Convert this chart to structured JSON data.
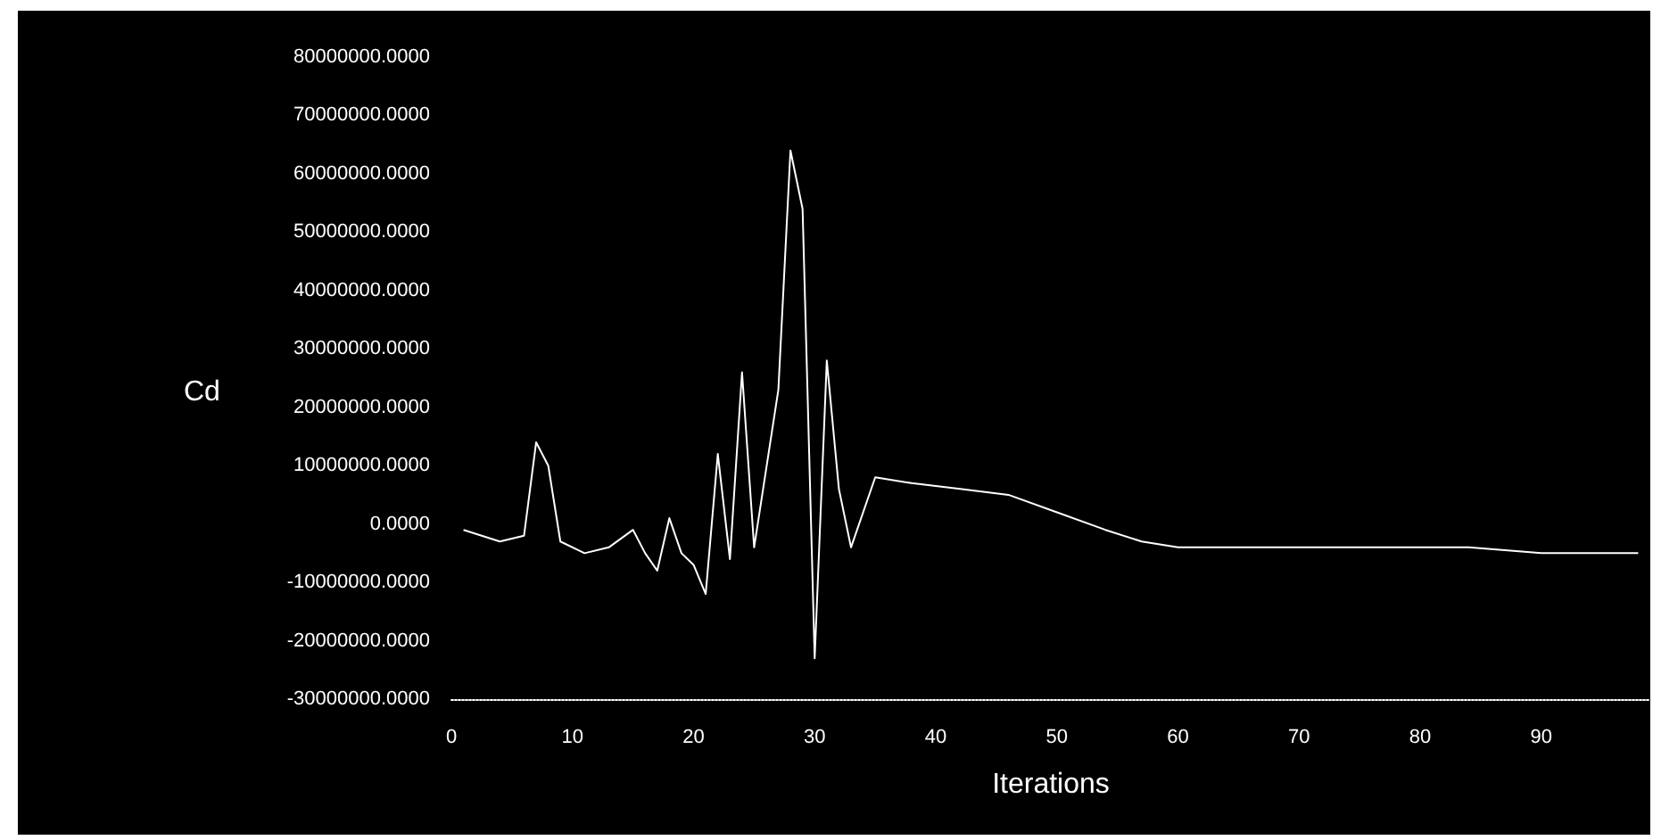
{
  "chart_data": {
    "type": "line",
    "xlabel": "Iterations",
    "ylabel": "Cd",
    "x": [
      1,
      4,
      6,
      7,
      8,
      9,
      11,
      13,
      15,
      16,
      17,
      18,
      19,
      20,
      21,
      22,
      23,
      24,
      25,
      27,
      28,
      29,
      30,
      31,
      32,
      33,
      35,
      38,
      42,
      46,
      50,
      54,
      57,
      60,
      66,
      72,
      78,
      84,
      90,
      98
    ],
    "series": [
      {
        "color": "#ffffff",
        "values": [
          -1000000,
          -3000000,
          -2000000,
          14000000,
          10000000,
          -3000000,
          -5000000,
          -4000000,
          -1000000,
          -5000000,
          -8000000,
          1000000,
          -5000000,
          -7000000,
          -12000000,
          12000000,
          -6000000,
          26000000,
          -4000000,
          23000000,
          64000000,
          54000000,
          -23000000,
          28000000,
          6000000,
          -4000000,
          8000000,
          7000000,
          6000000,
          5000000,
          2000000,
          -1000000,
          -3000000,
          -4000000,
          -4000000,
          -4000000,
          -4000000,
          -4000000,
          -5000000,
          -5000000
        ]
      }
    ],
    "xlim": [
      0,
      99
    ],
    "xticks": [
      0,
      10,
      20,
      30,
      40,
      50,
      60,
      70,
      80,
      90
    ],
    "ylim": [
      -30000000,
      80000000
    ],
    "yticks": [
      {
        "value": -30000000,
        "label": "-30000000.0000"
      },
      {
        "value": -20000000,
        "label": "-20000000.0000"
      },
      {
        "value": -10000000,
        "label": "-10000000.0000"
      },
      {
        "value": 0,
        "label": "0.0000"
      },
      {
        "value": 10000000,
        "label": "10000000.0000"
      },
      {
        "value": 20000000,
        "label": "20000000.0000"
      },
      {
        "value": 30000000,
        "label": "30000000.0000"
      },
      {
        "value": 40000000,
        "label": "40000000.0000"
      },
      {
        "value": 50000000,
        "label": "50000000.0000"
      },
      {
        "value": 60000000,
        "label": "60000000.0000"
      },
      {
        "value": 70000000,
        "label": "70000000.0000"
      },
      {
        "value": 80000000,
        "label": "80000000.0000"
      }
    ],
    "grid": false,
    "marker": "none",
    "line_style": "solid"
  }
}
